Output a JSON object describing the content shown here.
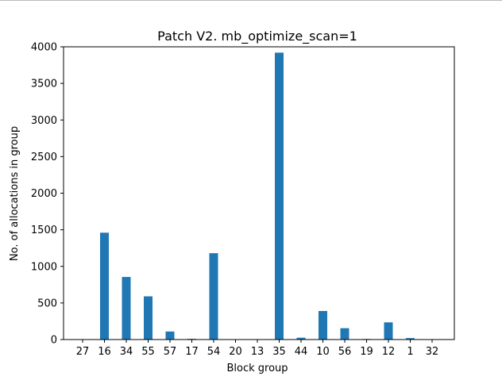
{
  "chart_data": {
    "type": "bar",
    "title": "Patch V2. mb_optimize_scan=1",
    "xlabel": "Block group",
    "ylabel": "No. of allocations in group",
    "categories": [
      "27",
      "16",
      "34",
      "55",
      "57",
      "17",
      "54",
      "20",
      "13",
      "35",
      "44",
      "10",
      "56",
      "19",
      "12",
      "1",
      "32"
    ],
    "values": [
      2,
      1460,
      855,
      590,
      110,
      10,
      1180,
      2,
      2,
      3920,
      25,
      390,
      155,
      8,
      235,
      20,
      2
    ],
    "ylim": [
      0,
      4000
    ],
    "yticks": [
      0,
      500,
      1000,
      1500,
      2000,
      2500,
      3000,
      3500,
      4000
    ],
    "grid": false,
    "bar_color": "#1f77b4"
  }
}
